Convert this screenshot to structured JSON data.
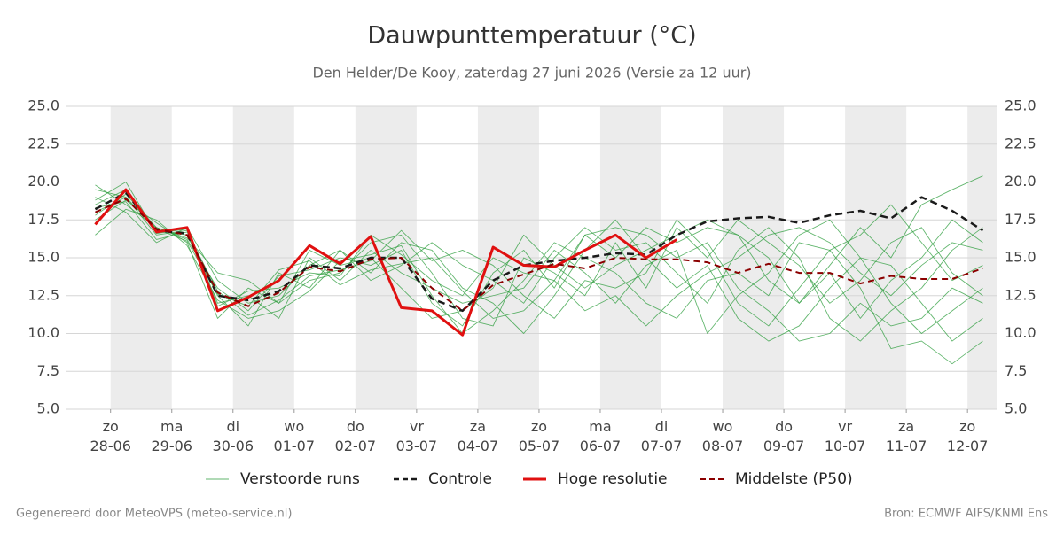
{
  "chart_data": {
    "type": "line",
    "title": "Dauwpunttemperatuur (°C)",
    "subtitle": "Den Helder/De Kooy, zaterdag 27 juni 2026 (Versie za 12 uur)",
    "footer_left": "Gegenereerd door MeteoVPS (meteo-service.nl)",
    "footer_right": "Bron: ECMWF AIFS/KNMI Ens",
    "x": [
      -0.25,
      0.25,
      0.75,
      1.25,
      1.75,
      2.25,
      2.75,
      3.25,
      3.75,
      4.25,
      4.75,
      5.25,
      5.75,
      6.25,
      6.75,
      7.25,
      7.75,
      8.25,
      8.75,
      9.25,
      9.75,
      10.25,
      10.75,
      11.25,
      11.75,
      12.25,
      12.75,
      13.25,
      13.75,
      14.25
    ],
    "xlim": [
      -0.72,
      14.49
    ],
    "xticks": [
      {
        "value": 0,
        "label": "zo 28-06"
      },
      {
        "value": 1,
        "label": "ma 29-06"
      },
      {
        "value": 2,
        "label": "di 30-06"
      },
      {
        "value": 3,
        "label": "wo 01-07"
      },
      {
        "value": 4,
        "label": "do 02-07"
      },
      {
        "value": 5,
        "label": "vr 03-07"
      },
      {
        "value": 6,
        "label": "za 04-07"
      },
      {
        "value": 7,
        "label": "zo 05-07"
      },
      {
        "value": 8,
        "label": "ma 06-07"
      },
      {
        "value": 9,
        "label": "di 07-07"
      },
      {
        "value": 10,
        "label": "wo 08-07"
      },
      {
        "value": 11,
        "label": "do 09-07"
      },
      {
        "value": 12,
        "label": "vr 10-07"
      },
      {
        "value": 13,
        "label": "za 11-07"
      },
      {
        "value": 14,
        "label": "zo 12-07"
      }
    ],
    "ylim": [
      5,
      25
    ],
    "yticks": [
      {
        "value": 5,
        "label": "5.0"
      },
      {
        "value": 7.5,
        "label": "7.5"
      },
      {
        "value": 10,
        "label": "10.0"
      },
      {
        "value": 12.5,
        "label": "12.5"
      },
      {
        "value": 15,
        "label": "15.0"
      },
      {
        "value": 17.5,
        "label": "17.5"
      },
      {
        "value": 20,
        "label": "20.0"
      },
      {
        "value": 22.5,
        "label": "22.5"
      },
      {
        "value": 25,
        "label": "25.0"
      }
    ],
    "grid": true,
    "series": [
      {
        "name": "Verstoorde runs",
        "color": "#2e9e3e",
        "style": "thin",
        "members": [
          [
            19.8,
            18.5,
            17.0,
            16.2,
            13.0,
            11.5,
            13.8,
            14.2,
            15.0,
            14.5,
            15.5,
            12.0,
            10.5,
            14.0,
            15.5,
            13.0,
            16.5,
            15.0,
            17.0,
            16.0,
            17.0,
            16.5,
            15.0,
            12.0,
            14.0,
            11.0,
            13.5,
            15.0,
            17.5,
            16.0
          ],
          [
            18.0,
            19.0,
            16.5,
            16.8,
            12.0,
            12.5,
            11.0,
            15.0,
            13.5,
            15.5,
            14.0,
            13.0,
            12.0,
            12.5,
            13.0,
            15.5,
            14.0,
            12.0,
            14.5,
            15.5,
            10.0,
            12.5,
            14.0,
            16.5,
            17.5,
            15.0,
            12.0,
            10.0,
            11.5,
            13.0
          ],
          [
            17.5,
            18.8,
            17.3,
            16.0,
            11.0,
            13.0,
            12.0,
            13.5,
            14.0,
            16.0,
            16.5,
            14.0,
            11.0,
            10.5,
            15.0,
            14.0,
            12.5,
            16.0,
            13.0,
            17.0,
            15.0,
            17.5,
            16.0,
            14.5,
            12.0,
            13.5,
            16.0,
            17.0,
            14.0,
            12.5
          ],
          [
            18.5,
            19.5,
            16.8,
            16.5,
            12.5,
            10.5,
            14.0,
            13.0,
            15.5,
            14.0,
            16.0,
            15.5,
            13.0,
            12.0,
            10.0,
            12.5,
            15.5,
            17.5,
            15.0,
            13.0,
            14.5,
            11.0,
            9.5,
            10.5,
            13.0,
            15.0,
            14.5,
            12.0,
            9.5,
            11.0
          ],
          [
            19.0,
            18.0,
            16.0,
            17.0,
            13.5,
            12.0,
            12.5,
            14.5,
            15.5,
            13.5,
            14.5,
            16.0,
            14.5,
            13.5,
            12.0,
            15.0,
            17.0,
            15.5,
            16.0,
            14.0,
            12.0,
            15.5,
            17.0,
            15.0,
            11.0,
            9.5,
            11.5,
            13.0,
            15.5,
            17.0
          ],
          [
            16.5,
            18.2,
            17.5,
            15.8,
            12.2,
            11.0,
            11.5,
            12.8,
            14.8,
            15.2,
            15.8,
            12.5,
            10.0,
            11.5,
            13.5,
            16.0,
            15.0,
            14.0,
            12.0,
            11.0,
            13.5,
            14.0,
            12.5,
            16.0,
            15.5,
            16.5,
            18.5,
            16.0,
            13.5,
            14.5
          ],
          [
            18.8,
            20.0,
            16.6,
            16.9,
            11.8,
            12.8,
            13.0,
            14.0,
            13.8,
            16.5,
            15.2,
            13.5,
            12.5,
            15.0,
            14.0,
            13.5,
            16.5,
            17.0,
            16.5,
            15.0,
            16.0,
            13.0,
            11.5,
            9.5,
            10.0,
            12.0,
            10.5,
            11.0,
            13.0,
            12.0
          ],
          [
            17.8,
            19.2,
            17.0,
            16.3,
            14.0,
            13.5,
            12.0,
            15.5,
            14.5,
            15.0,
            13.0,
            11.0,
            11.5,
            13.0,
            16.5,
            14.5,
            13.0,
            14.5,
            15.5,
            16.5,
            17.5,
            16.5,
            13.5,
            12.0,
            14.5,
            17.0,
            15.0,
            18.5,
            19.5,
            20.4
          ],
          [
            18.3,
            18.7,
            16.2,
            16.7,
            12.8,
            11.2,
            12.2,
            13.8,
            14.2,
            14.8,
            16.8,
            14.8,
            15.5,
            14.5,
            12.5,
            11.0,
            13.5,
            13.0,
            14.0,
            17.5,
            15.5,
            12.0,
            10.5,
            13.0,
            15.5,
            13.0,
            9.0,
            9.5,
            8.0,
            9.5
          ],
          [
            19.5,
            19.0,
            16.9,
            16.1,
            12.6,
            11.8,
            14.2,
            14.8,
            13.2,
            14.2,
            14.6,
            15.0,
            12.8,
            11.0,
            11.5,
            13.5,
            11.5,
            12.5,
            10.5,
            12.5,
            14.0,
            15.0,
            16.5,
            17.0,
            16.0,
            14.0,
            12.5,
            14.5,
            16.0,
            15.5
          ]
        ]
      },
      {
        "name": "Controle",
        "color": "#1a1a1a",
        "style": "dashed",
        "values": [
          18.2,
          19.3,
          16.8,
          16.6,
          12.5,
          12.2,
          12.8,
          14.5,
          14.3,
          15.0,
          15.0,
          12.3,
          11.5,
          13.5,
          14.5,
          14.8,
          15.0,
          15.3,
          15.2,
          16.5,
          17.4,
          17.6,
          17.7,
          17.3,
          17.8,
          18.1,
          17.6,
          19.0,
          18.1,
          16.8
        ]
      },
      {
        "name": "Hoge resolutie",
        "color": "#e01010",
        "style": "thick",
        "values": [
          17.2,
          19.5,
          16.7,
          17.0,
          11.5,
          12.4,
          13.5,
          15.8,
          14.6,
          16.4,
          11.7,
          11.5,
          9.9,
          15.7,
          14.5,
          14.4,
          15.5,
          16.5,
          15.0,
          16.2,
          null,
          null,
          null,
          null,
          null,
          null,
          null,
          null,
          null,
          null
        ]
      },
      {
        "name": "Middelste (P50)",
        "color": "#8b0000",
        "style": "dashed-thin",
        "values": [
          18.0,
          18.9,
          16.9,
          16.5,
          12.7,
          11.8,
          12.7,
          14.4,
          14.1,
          14.9,
          15.0,
          13.0,
          11.5,
          13.2,
          13.9,
          14.6,
          14.3,
          15.0,
          14.9,
          14.9,
          14.7,
          14.0,
          14.6,
          14.0,
          14.0,
          13.3,
          13.8,
          13.6,
          13.6,
          14.3
        ]
      }
    ]
  }
}
